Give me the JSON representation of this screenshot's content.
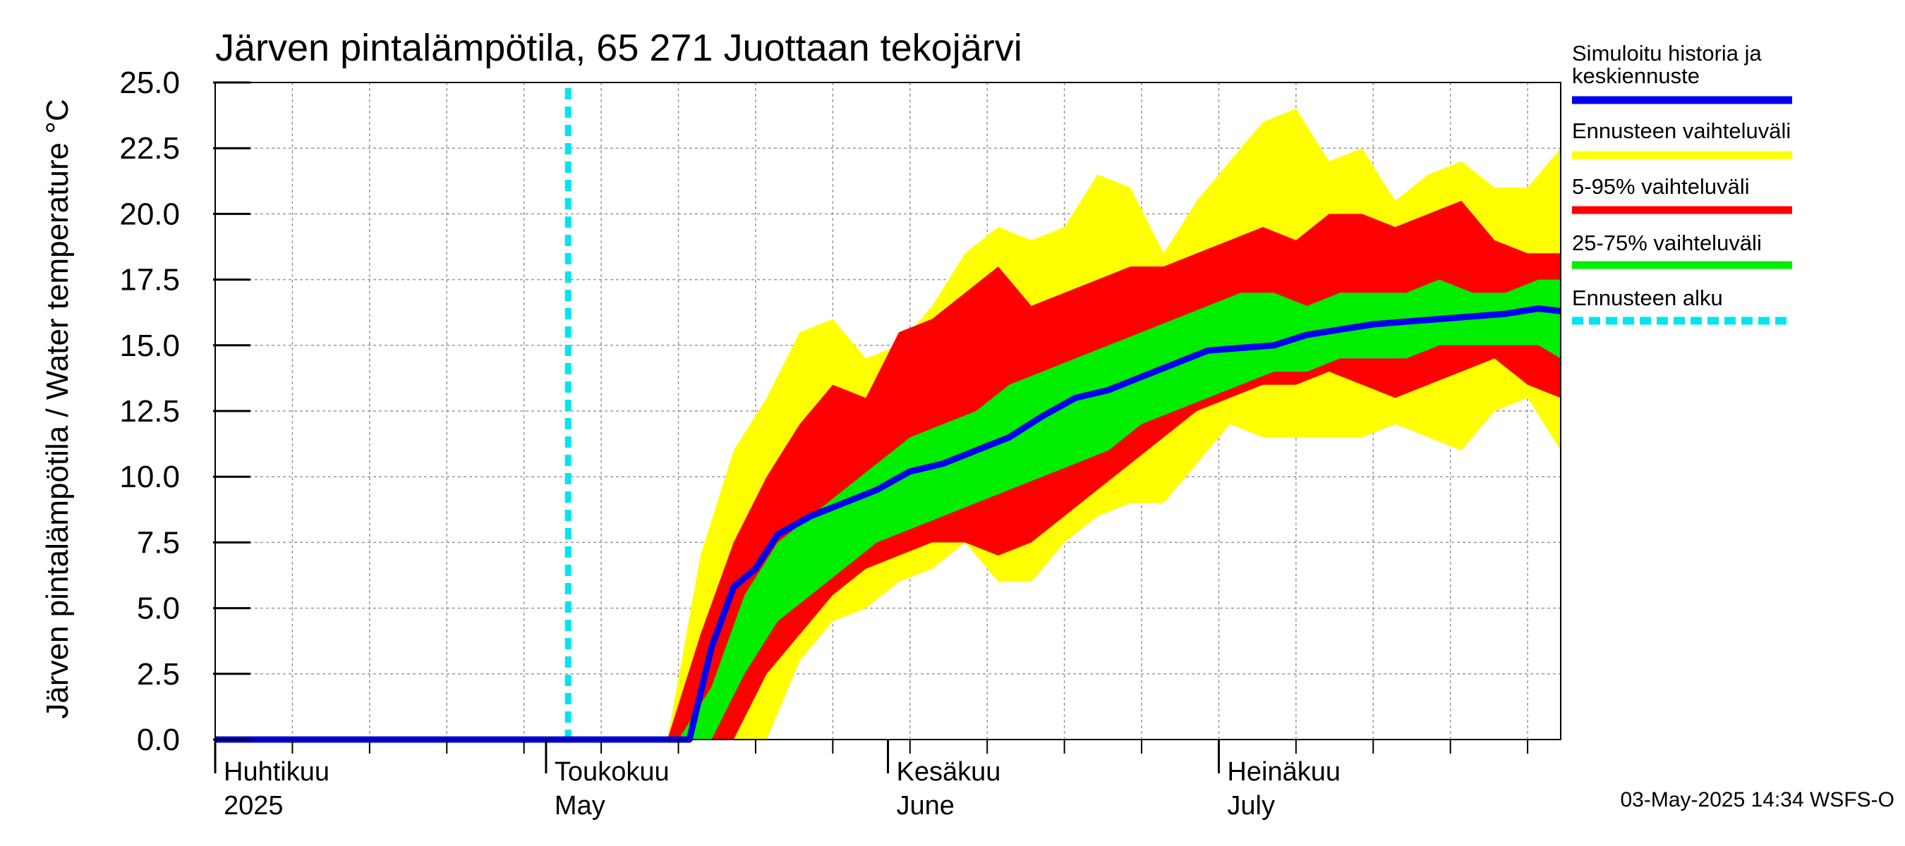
{
  "chart_data": {
    "type": "area",
    "title": "Järven pintalämpötila, 65 271 Juottaan tekojärvi",
    "ylabel": "Järven pintalämpötila / Water temperature °C",
    "xlabel": "",
    "ylim": [
      0.0,
      25.0
    ],
    "yticks": [
      "0.0",
      "2.5",
      "5.0",
      "7.5",
      "10.0",
      "12.5",
      "15.0",
      "17.5",
      "20.0",
      "22.5",
      "25.0"
    ],
    "xlim": [
      "2025-04-01",
      "2025-08-01"
    ],
    "xticks": [
      {
        "date": "2025-04-01",
        "line1": "Huhtikuu",
        "line2": "2025"
      },
      {
        "date": "2025-05-01",
        "line1": "Toukokuu",
        "line2": "May"
      },
      {
        "date": "2025-06-01",
        "line1": "Kesäkuu",
        "line2": "June"
      },
      {
        "date": "2025-07-01",
        "line1": "Heinäkuu",
        "line2": "July"
      }
    ],
    "grid": true,
    "legend_position": "right",
    "forecast_start": "2025-05-03",
    "series": [
      {
        "name": "Ennusteen vaihteluväli",
        "kind": "band",
        "color": "#ffff00",
        "x": [
          "2025-04-01",
          "2025-05-12",
          "2025-05-15",
          "2025-05-18",
          "2025-05-21",
          "2025-05-24",
          "2025-05-27",
          "2025-05-30",
          "2025-06-02",
          "2025-06-05",
          "2025-06-08",
          "2025-06-11",
          "2025-06-14",
          "2025-06-17",
          "2025-06-20",
          "2025-06-23",
          "2025-06-26",
          "2025-06-29",
          "2025-07-02",
          "2025-07-05",
          "2025-07-08",
          "2025-07-11",
          "2025-07-14",
          "2025-07-17",
          "2025-07-20",
          "2025-07-23",
          "2025-07-26",
          "2025-07-29",
          "2025-08-01"
        ],
        "upper": [
          0.0,
          0.0,
          7.0,
          11.0,
          13.0,
          15.5,
          16.0,
          14.5,
          15.0,
          16.5,
          18.5,
          19.5,
          19.0,
          19.5,
          21.5,
          21.0,
          18.5,
          20.5,
          22.0,
          23.5,
          24.0,
          22.0,
          22.5,
          20.5,
          21.5,
          22.0,
          21.0,
          21.0,
          22.5
        ],
        "lower": [
          0.0,
          0.0,
          0.0,
          0.0,
          0.0,
          3.0,
          4.5,
          5.0,
          6.0,
          6.5,
          7.5,
          6.0,
          6.0,
          7.5,
          8.5,
          9.0,
          9.0,
          10.5,
          12.0,
          11.5,
          11.5,
          11.5,
          11.5,
          12.0,
          11.5,
          11.0,
          12.5,
          13.0,
          11.0
        ]
      },
      {
        "name": "5-95% vaihteluväli",
        "kind": "band",
        "color": "#ff0000",
        "x": [
          "2025-04-01",
          "2025-05-12",
          "2025-05-15",
          "2025-05-18",
          "2025-05-21",
          "2025-05-24",
          "2025-05-27",
          "2025-05-30",
          "2025-06-02",
          "2025-06-05",
          "2025-06-08",
          "2025-06-11",
          "2025-06-14",
          "2025-06-17",
          "2025-06-20",
          "2025-06-23",
          "2025-06-26",
          "2025-06-29",
          "2025-07-02",
          "2025-07-05",
          "2025-07-08",
          "2025-07-11",
          "2025-07-14",
          "2025-07-17",
          "2025-07-20",
          "2025-07-23",
          "2025-07-26",
          "2025-07-29",
          "2025-08-01"
        ],
        "upper": [
          0.0,
          0.0,
          4.0,
          7.5,
          10.0,
          12.0,
          13.5,
          13.0,
          15.5,
          16.0,
          17.0,
          18.0,
          16.5,
          17.0,
          17.5,
          18.0,
          18.0,
          18.5,
          19.0,
          19.5,
          19.0,
          20.0,
          20.0,
          19.5,
          20.0,
          20.5,
          19.0,
          18.5,
          18.5
        ],
        "lower": [
          0.0,
          0.0,
          0.0,
          0.0,
          2.5,
          4.0,
          5.5,
          6.5,
          7.0,
          7.5,
          7.5,
          7.0,
          7.5,
          8.5,
          9.5,
          10.5,
          11.5,
          12.5,
          13.0,
          13.5,
          13.5,
          14.0,
          13.5,
          13.0,
          13.5,
          14.0,
          14.5,
          13.5,
          13.0
        ]
      },
      {
        "name": "25-75% vaihteluväli",
        "kind": "band",
        "color": "#00ee00",
        "x": [
          "2025-04-01",
          "2025-05-13",
          "2025-05-16",
          "2025-05-19",
          "2025-05-22",
          "2025-05-25",
          "2025-05-28",
          "2025-05-31",
          "2025-06-03",
          "2025-06-06",
          "2025-06-09",
          "2025-06-12",
          "2025-06-15",
          "2025-06-18",
          "2025-06-21",
          "2025-06-24",
          "2025-06-27",
          "2025-06-30",
          "2025-07-03",
          "2025-07-06",
          "2025-07-09",
          "2025-07-12",
          "2025-07-15",
          "2025-07-18",
          "2025-07-21",
          "2025-07-24",
          "2025-07-27",
          "2025-07-30",
          "2025-08-01"
        ],
        "upper": [
          0.0,
          0.0,
          2.0,
          5.5,
          7.5,
          8.5,
          9.5,
          10.5,
          11.5,
          12.0,
          12.5,
          13.5,
          14.0,
          14.5,
          15.0,
          15.5,
          16.0,
          16.5,
          17.0,
          17.0,
          16.5,
          17.0,
          17.0,
          17.0,
          17.5,
          17.0,
          17.0,
          17.5,
          17.5
        ],
        "lower": [
          0.0,
          0.0,
          0.0,
          2.5,
          4.5,
          5.5,
          6.5,
          7.5,
          8.0,
          8.5,
          9.0,
          9.5,
          10.0,
          10.5,
          11.0,
          12.0,
          12.5,
          13.0,
          13.5,
          14.0,
          14.0,
          14.5,
          14.5,
          14.5,
          15.0,
          15.0,
          15.0,
          15.0,
          14.5
        ]
      },
      {
        "name": "Simuloitu historia ja keskiennuste",
        "kind": "line",
        "color": "#0000ee",
        "x": [
          "2025-04-01",
          "2025-05-14",
          "2025-05-16",
          "2025-05-18",
          "2025-05-20",
          "2025-05-22",
          "2025-05-25",
          "2025-05-28",
          "2025-05-31",
          "2025-06-03",
          "2025-06-06",
          "2025-06-09",
          "2025-06-12",
          "2025-06-15",
          "2025-06-18",
          "2025-06-21",
          "2025-06-24",
          "2025-06-27",
          "2025-06-30",
          "2025-07-03",
          "2025-07-06",
          "2025-07-09",
          "2025-07-12",
          "2025-07-15",
          "2025-07-18",
          "2025-07-21",
          "2025-07-24",
          "2025-07-27",
          "2025-07-30",
          "2025-08-01"
        ],
        "values": [
          0.0,
          0.0,
          3.5,
          5.8,
          6.5,
          7.8,
          8.5,
          9.0,
          9.5,
          10.2,
          10.5,
          11.0,
          11.5,
          12.3,
          13.0,
          13.3,
          13.8,
          14.3,
          14.8,
          14.9,
          15.0,
          15.4,
          15.6,
          15.8,
          15.9,
          16.0,
          16.1,
          16.2,
          16.4,
          16.3
        ]
      },
      {
        "name": "Ennusteen alku",
        "kind": "vline",
        "color": "#00e5ee",
        "x": [
          "2025-05-03"
        ]
      }
    ]
  },
  "legend": {
    "items": [
      {
        "line1": "Simuloitu historia ja",
        "line2": "keskiennuste",
        "color": "#0000ee",
        "style": "solid"
      },
      {
        "line1": "Ennusteen vaihteluväli",
        "line2": "",
        "color": "#ffff00",
        "style": "solid"
      },
      {
        "line1": "5-95% vaihteluväli",
        "line2": "",
        "color": "#ff0000",
        "style": "solid"
      },
      {
        "line1": "25-75% vaihteluväli",
        "line2": "",
        "color": "#00ee00",
        "style": "solid"
      },
      {
        "line1": "Ennusteen alku",
        "line2": "",
        "color": "#00e5ee",
        "style": "dashed"
      }
    ]
  },
  "footer": "03-May-2025 14:34 WSFS-O"
}
